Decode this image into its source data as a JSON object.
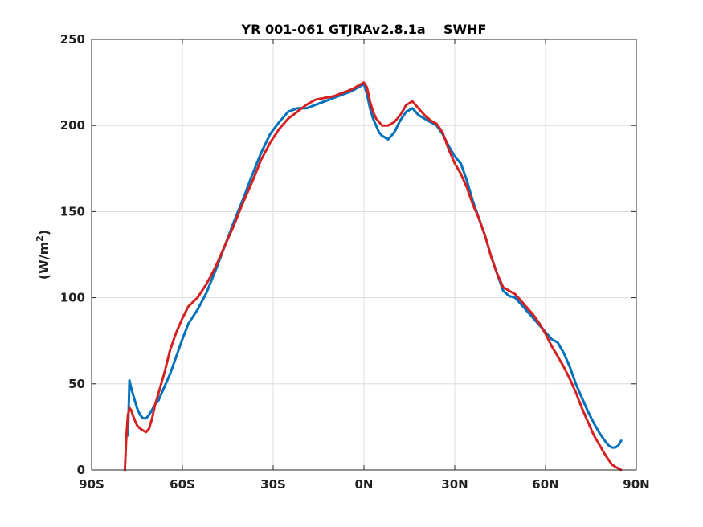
{
  "chart_data": {
    "type": "line",
    "title": "YR 001-061 GTJRAv2.8.1a    SWHF",
    "xlabel": "",
    "ylabel": "(W/m",
    "ylabel_sup": "2",
    "ylabel_end": ")",
    "xlim": [
      -90,
      90
    ],
    "ylim": [
      0,
      250
    ],
    "x_ticks": [
      -90,
      -60,
      -30,
      0,
      30,
      60,
      90
    ],
    "x_tick_labels": [
      "90S",
      "60S",
      "30S",
      "0N",
      "30N",
      "60N",
      "90N"
    ],
    "y_ticks": [
      0,
      50,
      100,
      150,
      200,
      250
    ],
    "y_tick_labels": [
      "0",
      "50",
      "100",
      "150",
      "200",
      "250"
    ],
    "grid": true,
    "series": [
      {
        "color": "#0072bd",
        "style": "solid",
        "x": [
          -78,
          -77.5,
          -77,
          -76,
          -75,
          -74,
          -73,
          -72,
          -71,
          -70,
          -69,
          -68,
          -66,
          -64,
          -62,
          -60,
          -58,
          -55,
          -52,
          -49,
          -46,
          -43,
          -40,
          -37,
          -34,
          -31,
          -28,
          -25,
          -22,
          -19,
          -16,
          -13,
          -10,
          -7,
          -4,
          -2,
          0,
          1,
          2,
          3,
          4,
          5,
          6,
          7,
          8,
          9,
          10,
          12,
          14,
          16,
          18,
          20,
          22,
          24,
          26,
          28,
          30,
          32,
          34,
          36,
          38,
          40,
          42,
          44,
          46,
          48,
          50,
          52,
          54,
          56,
          58,
          60,
          62,
          64,
          66,
          68,
          70,
          72,
          74,
          76,
          78,
          80,
          81,
          82,
          83,
          84,
          85
        ],
        "y": [
          20,
          52,
          48,
          42,
          36,
          32,
          30,
          30,
          32,
          35,
          38,
          40,
          48,
          56,
          66,
          76,
          85,
          93,
          103,
          116,
          130,
          144,
          157,
          171,
          184,
          195,
          202,
          208,
          210,
          210,
          212,
          214,
          216,
          218,
          220,
          222,
          224,
          218,
          210,
          204,
          200,
          196,
          194,
          193,
          192,
          194,
          196,
          203,
          208,
          210,
          206,
          204,
          202,
          200,
          195,
          188,
          182,
          178,
          168,
          156,
          146,
          136,
          124,
          114,
          104,
          101,
          100,
          96,
          92,
          88,
          84,
          80,
          76,
          74,
          68,
          60,
          50,
          42,
          34,
          27,
          21,
          16,
          14,
          13,
          13,
          14,
          17
        ]
      },
      {
        "color": "#d62020",
        "style": "dashed",
        "x": [
          -79,
          -78.5,
          -78,
          -77.5,
          -77,
          -76,
          -75,
          -74,
          -73,
          -72,
          -71,
          -70,
          -69,
          -68,
          -66,
          -64,
          -62,
          -60,
          -58,
          -55,
          -52,
          -49,
          -46,
          -43,
          -40,
          -37,
          -34,
          -31,
          -28,
          -25,
          -22,
          -19,
          -16,
          -13,
          -10,
          -7,
          -4,
          -2,
          0,
          1,
          2,
          3,
          4,
          6,
          8,
          10,
          12,
          14,
          16,
          18,
          20,
          22,
          24,
          26,
          28,
          30,
          32,
          34,
          36,
          38,
          40,
          42,
          44,
          46,
          48,
          50,
          52,
          54,
          56,
          58,
          60,
          62,
          64,
          66,
          68,
          70,
          72,
          74,
          76,
          78,
          80,
          82,
          84,
          85
        ],
        "y": [
          0,
          20,
          32,
          36,
          35,
          30,
          26,
          24,
          23,
          22,
          24,
          30,
          38,
          44,
          56,
          70,
          80,
          88,
          95,
          100,
          108,
          118,
          130,
          142,
          155,
          167,
          180,
          190,
          198,
          204,
          208,
          212,
          215,
          216,
          217,
          219,
          221,
          223,
          225,
          222,
          214,
          208,
          204,
          200,
          200,
          202,
          206,
          212,
          214,
          210,
          206,
          203,
          201,
          196,
          186,
          178,
          172,
          164,
          154,
          146,
          136,
          124,
          114,
          106,
          104,
          102,
          98,
          94,
          90,
          85,
          79,
          72,
          66,
          60,
          53,
          45,
          36,
          28,
          20,
          14,
          8,
          3,
          1,
          0
        ]
      }
    ]
  }
}
